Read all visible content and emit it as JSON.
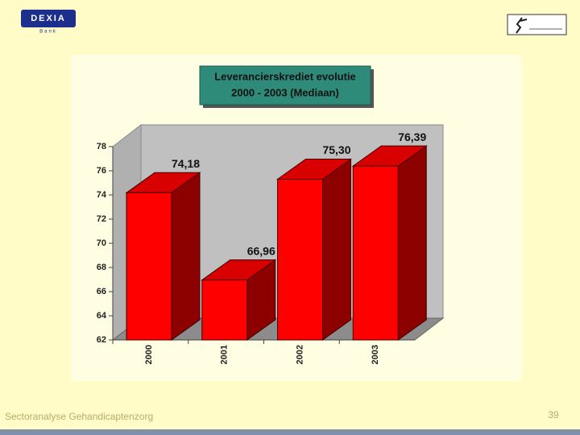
{
  "logo": {
    "name": "DEXIA",
    "sub": "Bank"
  },
  "chart_data": {
    "type": "bar3d",
    "title": "Leverancierskrediet evolutie",
    "subtitle": "2000 - 2003 (Mediaan)",
    "categories": [
      "2000",
      "2001",
      "2002",
      "2003"
    ],
    "values": [
      74.18,
      66.96,
      75.3,
      76.39
    ],
    "value_labels": [
      "74,18",
      "66,96",
      "75,30",
      "76,39"
    ],
    "color": "#ff0000",
    "ylim": [
      62,
      78
    ],
    "yticks": [
      62,
      64,
      66,
      68,
      70,
      72,
      74,
      76,
      78
    ]
  },
  "footer": "Sectoranalyse Gehandicaptenzorg",
  "page_number": "39"
}
